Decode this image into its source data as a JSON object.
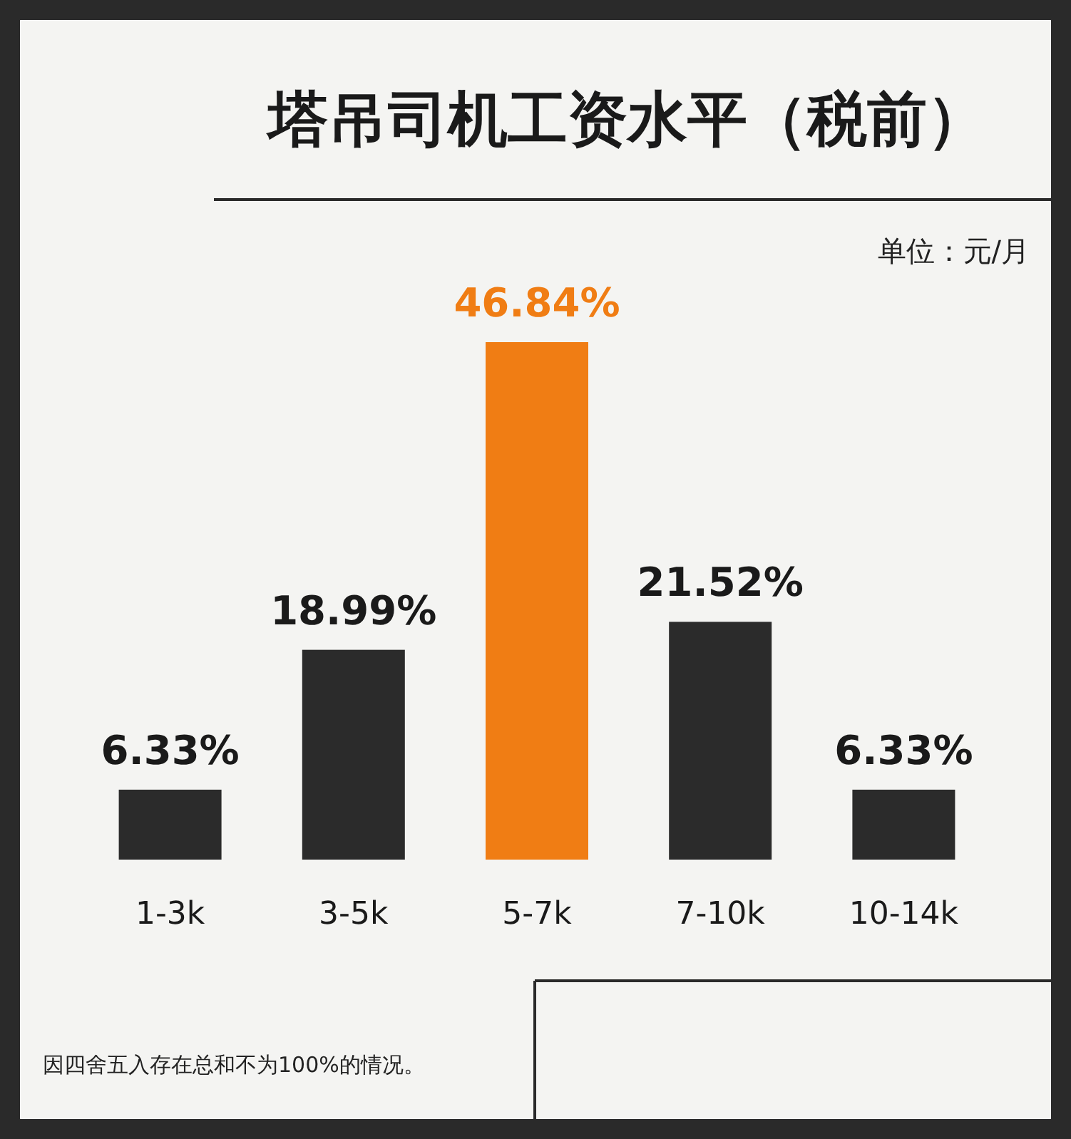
{
  "chart_data": {
    "type": "bar",
    "title": "塔吊司机工资水平（税前）",
    "annotations": [
      "单位：元/月",
      "因四舍五入存在总和不为100%的情况。"
    ],
    "categories": [
      "1-3k",
      "3-5k",
      "5-7k",
      "7-10k",
      "10-14k"
    ],
    "values": [
      6.33,
      18.99,
      46.84,
      21.52,
      6.33
    ],
    "colors": [
      "#2b2b2b",
      "#2b2b2b",
      "#f07d14",
      "#2b2b2b",
      "#2b2b2b"
    ],
    "value_labels": [
      "6.33%",
      "18.99%",
      "46.84%",
      "21.52%",
      "6.33%"
    ]
  }
}
